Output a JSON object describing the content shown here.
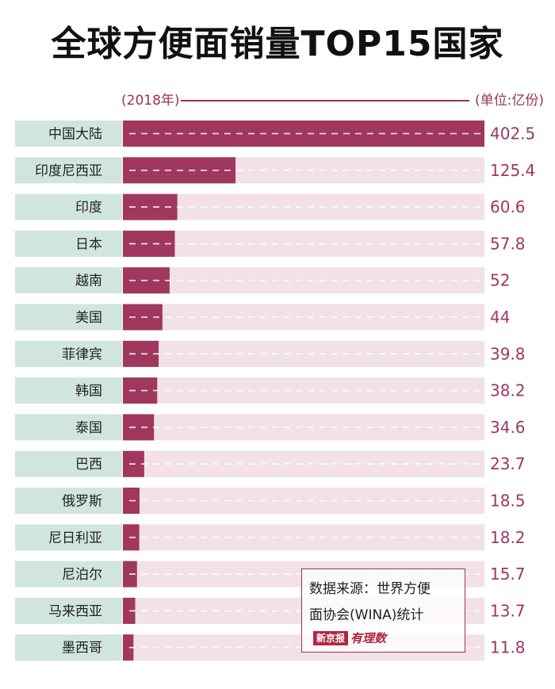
{
  "title": "全球方便面销量TOP15国家",
  "subtitle_year": "(2018年)",
  "unit": "(单位:亿份)",
  "colors": {
    "bar": "#a0375e",
    "track": "#f2e1e6",
    "label_bg": "#d1e5df",
    "value": "#a0375e"
  },
  "chart_data": {
    "type": "bar",
    "orientation": "horizontal",
    "title": "全球方便面销量TOP15国家",
    "categories": [
      "中国大陆",
      "印度尼西亚",
      "印度",
      "日本",
      "越南",
      "美国",
      "菲律宾",
      "韩国",
      "泰国",
      "巴西",
      "俄罗斯",
      "尼日利亚",
      "尼泊尔",
      "马来西亚",
      "墨西哥"
    ],
    "values": [
      402.5,
      125.4,
      60.6,
      57.8,
      52,
      44,
      39.8,
      38.2,
      34.6,
      23.7,
      18.5,
      18.2,
      15.7,
      13.7,
      11.8
    ],
    "value_labels": [
      "402.5",
      "125.4",
      "60.6",
      "57.8",
      "52",
      "44",
      "39.8",
      "38.2",
      "34.6",
      "23.7",
      "18.5",
      "18.2",
      "15.7",
      "13.7",
      "11.8"
    ],
    "xlim": [
      0,
      402.5
    ],
    "xlabel": "",
    "ylabel": "",
    "unit": "亿份",
    "year": "2018"
  },
  "source": {
    "line1": "数据来源：世界方便",
    "line2": "面协会(WINA)统计",
    "brand_main": "新京报",
    "brand_sub": "有理数"
  }
}
